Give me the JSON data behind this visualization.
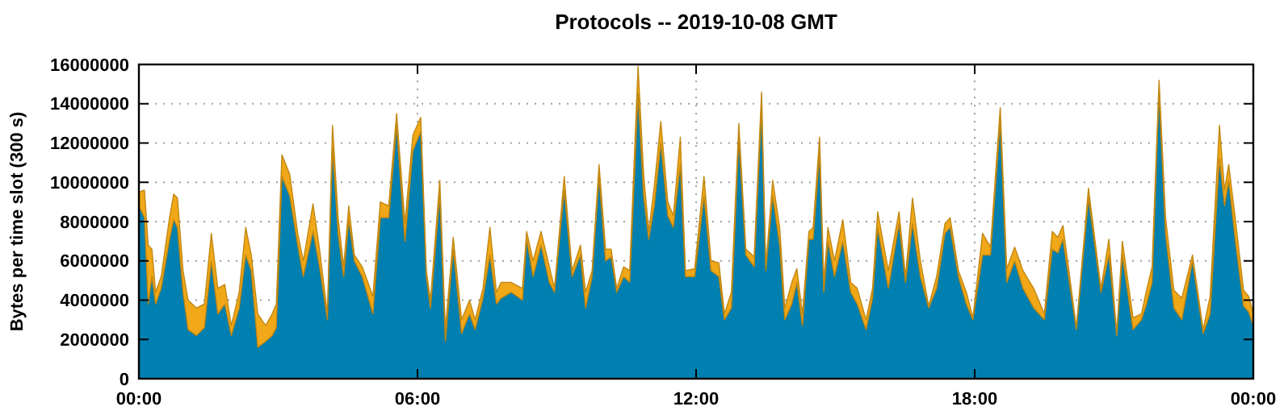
{
  "chart_data": {
    "type": "area",
    "stacked": true,
    "title": "Protocols -- 2019-10-08 GMT",
    "ylabel": "Bytes per time slot (300 s)",
    "x": [
      0,
      0.12,
      0.2,
      0.28,
      0.36,
      0.48,
      0.66,
      0.75,
      0.83,
      0.95,
      1.06,
      1.24,
      1.41,
      1.56,
      1.7,
      1.85,
      1.99,
      2.16,
      2.3,
      2.42,
      2.56,
      2.73,
      2.87,
      2.96,
      3.08,
      3.25,
      3.42,
      3.54,
      3.75,
      3.89,
      4.06,
      4.17,
      4.29,
      4.41,
      4.52,
      4.64,
      4.81,
      5.04,
      5.2,
      5.38,
      5.55,
      5.73,
      5.9,
      6.07,
      6.19,
      6.28,
      6.48,
      6.6,
      6.77,
      6.95,
      7.12,
      7.24,
      7.41,
      7.56,
      7.7,
      7.8,
      8.02,
      8.26,
      8.35,
      8.49,
      8.66,
      8.84,
      8.95,
      9.16,
      9.33,
      9.51,
      9.62,
      9.76,
      9.91,
      10.05,
      10.17,
      10.29,
      10.44,
      10.57,
      10.75,
      10.87,
      10.98,
      11.1,
      11.24,
      11.39,
      11.51,
      11.66,
      11.77,
      11.97,
      12.17,
      12.32,
      12.49,
      12.61,
      12.76,
      12.92,
      13.07,
      13.25,
      13.41,
      13.5,
      13.65,
      13.8,
      13.91,
      14.06,
      14.17,
      14.29,
      14.43,
      14.52,
      14.66,
      14.75,
      14.84,
      14.98,
      15.16,
      15.33,
      15.47,
      15.66,
      15.8,
      15.91,
      16.14,
      16.37,
      16.51,
      16.66,
      16.83,
      17.01,
      17.18,
      17.36,
      17.47,
      17.65,
      17.82,
      17.96,
      18.17,
      18.34,
      18.55,
      18.69,
      18.86,
      19.04,
      19.27,
      19.5,
      19.67,
      19.79,
      19.9,
      20.19,
      20.45,
      20.72,
      20.89,
      21.06,
      21.18,
      21.41,
      21.59,
      21.7,
      21.82,
      21.97,
      22.11,
      22.29,
      22.46,
      22.69,
      22.92,
      23.07,
      23.27,
      23.38,
      23.47,
      23.61,
      23.79,
      23.9,
      24
    ],
    "series": [
      {
        "color": "#0080b0",
        "values": [
          8800000,
          8200000,
          3800000,
          5200000,
          3800000,
          4600000,
          7100000,
          8100000,
          7700000,
          4400000,
          2500000,
          2200000,
          2600000,
          6000000,
          3300000,
          3800000,
          2200000,
          3600000,
          6300000,
          5500000,
          1600000,
          1900000,
          2200000,
          2600000,
          10300000,
          9300000,
          6800000,
          5200000,
          7500000,
          5700000,
          3000000,
          11800000,
          7400000,
          5200000,
          8100000,
          6000000,
          5200000,
          3300000,
          8200000,
          8200000,
          12900000,
          7000000,
          11600000,
          12600000,
          5200000,
          3600000,
          9400000,
          1900000,
          6600000,
          2300000,
          3300000,
          2500000,
          4100000,
          6300000,
          3800000,
          4100000,
          4400000,
          4000000,
          7100000,
          5200000,
          6800000,
          4900000,
          4400000,
          9600000,
          5200000,
          6300000,
          3600000,
          5200000,
          10300000,
          6000000,
          6200000,
          4400000,
          5200000,
          4900000,
          14500000,
          9300000,
          7100000,
          8800000,
          12000000,
          8300000,
          7700000,
          10900000,
          5200000,
          5200000,
          9300000,
          5500000,
          5200000,
          3000000,
          3600000,
          12300000,
          6300000,
          5700000,
          13800000,
          5500000,
          9300000,
          6800000,
          3000000,
          3800000,
          4900000,
          2700000,
          7100000,
          7100000,
          11500000,
          4400000,
          7000000,
          5200000,
          7000000,
          4400000,
          3800000,
          2500000,
          4100000,
          7700000,
          4600000,
          7900000,
          4900000,
          7900000,
          5200000,
          3600000,
          4600000,
          7400000,
          7700000,
          5200000,
          3800000,
          3000000,
          6300000,
          6300000,
          13100000,
          4900000,
          6000000,
          4600000,
          3600000,
          3000000,
          6600000,
          6400000,
          7100000,
          2500000,
          9200000,
          4400000,
          6300000,
          2200000,
          6300000,
          2500000,
          3000000,
          3800000,
          4900000,
          14600000,
          7400000,
          3600000,
          3000000,
          6000000,
          2300000,
          3300000,
          11200000,
          8800000,
          10100000,
          7100000,
          3700000,
          3400000,
          2700000
        ]
      },
      {
        "color": "#f0a818",
        "values": [
          700000,
          1400000,
          3000000,
          1400000,
          600000,
          600000,
          1100000,
          1300000,
          1500000,
          1100000,
          1500000,
          1400000,
          1200000,
          1400000,
          1300000,
          1000000,
          500000,
          800000,
          1400000,
          800000,
          1700000,
          800000,
          1100000,
          1200000,
          1100000,
          1100000,
          600000,
          800000,
          1400000,
          900000,
          300000,
          1100000,
          800000,
          500000,
          700000,
          300000,
          500000,
          900000,
          800000,
          600000,
          600000,
          900000,
          800000,
          700000,
          300000,
          400000,
          700000,
          600000,
          600000,
          700000,
          700000,
          500000,
          500000,
          1400000,
          600000,
          800000,
          500000,
          600000,
          400000,
          800000,
          700000,
          800000,
          200000,
          700000,
          300000,
          500000,
          800000,
          300000,
          600000,
          600000,
          400000,
          200000,
          500000,
          600000,
          1400000,
          1100000,
          400000,
          1000000,
          1100000,
          700000,
          600000,
          1400000,
          300000,
          400000,
          1000000,
          500000,
          700000,
          300000,
          800000,
          700000,
          300000,
          500000,
          800000,
          200000,
          800000,
          900000,
          600000,
          1100000,
          700000,
          600000,
          400000,
          600000,
          800000,
          500000,
          700000,
          800000,
          1100000,
          500000,
          800000,
          500000,
          500000,
          800000,
          900000,
          600000,
          300000,
          1300000,
          800000,
          100000,
          600000,
          500000,
          500000,
          300000,
          600000,
          100000,
          1100000,
          400000,
          700000,
          700000,
          700000,
          900000,
          1000000,
          300000,
          900000,
          800000,
          700000,
          100000,
          500000,
          200000,
          800000,
          100000,
          700000,
          600000,
          300000,
          700000,
          800000,
          600000,
          800000,
          900000,
          1100000,
          300000,
          200000,
          900000,
          1700000,
          800000,
          800000,
          1100000,
          800000,
          800000,
          600000
        ]
      }
    ],
    "xlim": [
      0,
      24
    ],
    "xticks": [
      {
        "value": 0,
        "label": "00:00"
      },
      {
        "value": 6,
        "label": "06:00"
      },
      {
        "value": 12,
        "label": "12:00"
      },
      {
        "value": 18,
        "label": "18:00"
      },
      {
        "value": 24,
        "label": "00:00"
      }
    ],
    "ylim": [
      0,
      16000000
    ],
    "yticks": [
      0,
      2000000,
      4000000,
      6000000,
      8000000,
      10000000,
      12000000,
      14000000,
      16000000
    ],
    "grid": true
  }
}
